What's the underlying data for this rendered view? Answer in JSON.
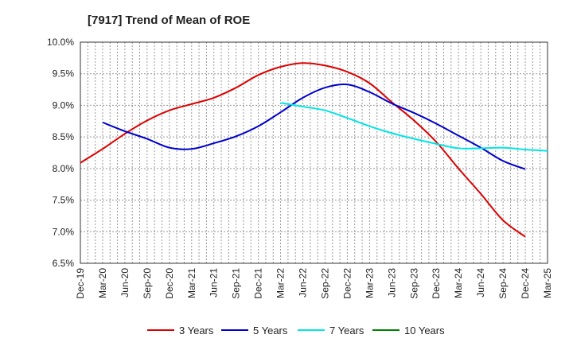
{
  "chart_data": {
    "type": "line",
    "title": "[7917]  Trend of Mean of ROE",
    "xlabel": "",
    "ylabel": "",
    "x_ticks": [
      "Dec-19",
      "Mar-20",
      "Jun-20",
      "Sep-20",
      "Dec-20",
      "Mar-21",
      "Jun-21",
      "Sep-21",
      "Dec-21",
      "Mar-22",
      "Jun-22",
      "Sep-22",
      "Dec-22",
      "Mar-23",
      "Jun-23",
      "Sep-23",
      "Dec-23",
      "Mar-24",
      "Jun-24",
      "Sep-24",
      "Dec-24",
      "Mar-25"
    ],
    "y_ticks": [
      "6.5%",
      "7.0%",
      "7.5%",
      "8.0%",
      "8.5%",
      "9.0%",
      "9.5%",
      "10.0%"
    ],
    "ylim": [
      6.5,
      10.0
    ],
    "grid": true,
    "legend_position": "bottom",
    "series": [
      {
        "name": "3 Years",
        "color": "#dd0000",
        "x_start_index": 0,
        "values": [
          8.09,
          8.31,
          8.55,
          8.76,
          8.92,
          9.02,
          9.12,
          9.28,
          9.48,
          9.61,
          9.67,
          9.63,
          9.53,
          9.35,
          9.05,
          8.76,
          8.42,
          8.0,
          7.6,
          7.18,
          6.92
        ]
      },
      {
        "name": "5 Years",
        "color": "#0000cc",
        "x_start_index": 1,
        "values": [
          8.73,
          8.59,
          8.47,
          8.33,
          8.31,
          8.4,
          8.51,
          8.67,
          8.89,
          9.12,
          9.28,
          9.33,
          9.21,
          9.03,
          8.88,
          8.71,
          8.52,
          8.33,
          8.12,
          7.99
        ]
      },
      {
        "name": "7 Years",
        "color": "#00e5e5",
        "x_start_index": 9,
        "values": [
          9.04,
          8.98,
          8.92,
          8.8,
          8.67,
          8.56,
          8.47,
          8.39,
          8.32,
          8.32,
          8.33,
          8.3,
          8.28
        ]
      },
      {
        "name": "10 Years",
        "color": "#008000",
        "x_start_index": 0,
        "values": []
      }
    ]
  }
}
